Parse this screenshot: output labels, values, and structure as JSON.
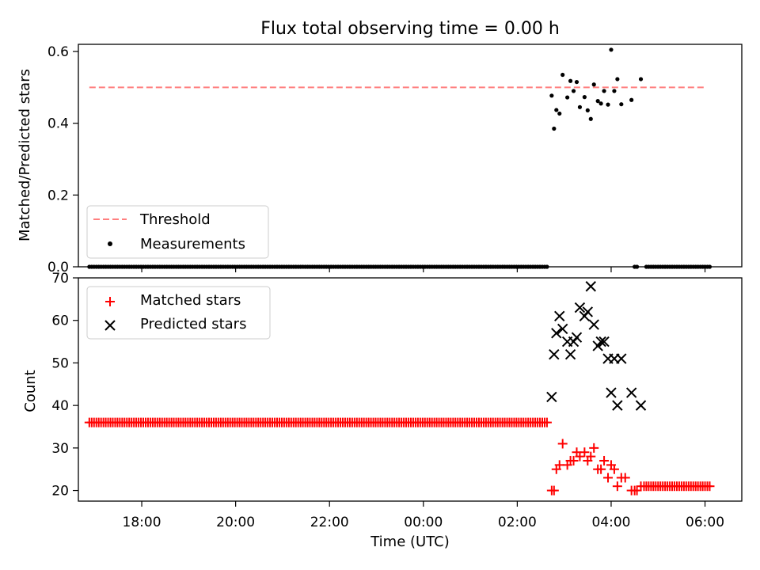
{
  "figure": {
    "title": "Flux total observing time = 0.00 h"
  },
  "chart_data": [
    {
      "type": "scatter",
      "panel": "top",
      "ylabel": "Matched/Predicted stars",
      "xlabel": "",
      "x_is_time_utc": true,
      "xlim": [
        "16:39",
        "06:47"
      ],
      "ylim": [
        0,
        0.62
      ],
      "yticks": [
        0.0,
        0.2,
        0.4,
        0.6
      ],
      "ytick_labels": [
        "0.0",
        "0.2",
        "0.4",
        "0.6"
      ],
      "xticks": [
        "18:00",
        "20:00",
        "22:00",
        "00:00",
        "02:00",
        "04:00",
        "06:00"
      ],
      "legend": {
        "placement": "lower-left",
        "entries": [
          "Threshold",
          "Measurements"
        ]
      },
      "threshold": {
        "name": "Threshold",
        "value": 0.5,
        "x_range": [
          "16:53",
          "06:00"
        ],
        "color": "#ff7f7f",
        "style": "dashed"
      },
      "series": [
        {
          "name": "Measurements",
          "marker": "dot",
          "color": "#000000",
          "zero_time_range": {
            "start": "16:53",
            "end": "02:38",
            "step_minutes": 3,
            "value": 0
          },
          "points": [
            [
              "02:44",
              0.477
            ],
            [
              "02:47",
              0.385
            ],
            [
              "02:50",
              0.437
            ],
            [
              "02:54",
              0.427
            ],
            [
              "02:58",
              0.535
            ],
            [
              "03:04",
              0.472
            ],
            [
              "03:08",
              0.518
            ],
            [
              "03:12",
              0.49
            ],
            [
              "03:16",
              0.515
            ],
            [
              "03:20",
              0.445
            ],
            [
              "03:26",
              0.473
            ],
            [
              "03:30",
              0.436
            ],
            [
              "03:34",
              0.412
            ],
            [
              "03:38",
              0.508
            ],
            [
              "03:43",
              0.462
            ],
            [
              "03:47",
              0.455
            ],
            [
              "03:51",
              0.49
            ],
            [
              "03:56",
              0.452
            ],
            [
              "04:00",
              0.605
            ],
            [
              "04:04",
              0.49
            ],
            [
              "04:08",
              0.523
            ],
            [
              "04:13",
              0.453
            ],
            [
              "04:26",
              0.465
            ],
            [
              "04:38",
              0.523
            ],
            [
              "04:30",
              0
            ],
            [
              "04:33",
              0
            ],
            [
              "04:45",
              0
            ],
            [
              "04:48",
              0
            ],
            [
              "04:51",
              0
            ],
            [
              "04:54",
              0
            ],
            [
              "04:57",
              0
            ],
            [
              "05:00",
              0
            ],
            [
              "05:03",
              0
            ],
            [
              "05:06",
              0
            ],
            [
              "05:09",
              0
            ],
            [
              "05:12",
              0
            ],
            [
              "05:15",
              0
            ],
            [
              "05:18",
              0
            ],
            [
              "05:21",
              0
            ],
            [
              "05:24",
              0
            ],
            [
              "05:27",
              0
            ],
            [
              "05:30",
              0
            ],
            [
              "05:33",
              0
            ],
            [
              "05:36",
              0
            ],
            [
              "05:39",
              0
            ],
            [
              "05:42",
              0
            ],
            [
              "05:45",
              0
            ],
            [
              "05:48",
              0
            ],
            [
              "05:51",
              0
            ],
            [
              "05:54",
              0
            ],
            [
              "05:57",
              0
            ],
            [
              "06:00",
              0
            ],
            [
              "06:03",
              0
            ],
            [
              "06:06",
              0
            ]
          ]
        }
      ]
    },
    {
      "type": "scatter",
      "panel": "bottom",
      "xlabel": "Time (UTC)",
      "ylabel": "Count",
      "x_is_time_utc": true,
      "xlim": [
        "16:39",
        "06:47"
      ],
      "ylim": [
        17.5,
        70
      ],
      "yticks": [
        20,
        30,
        40,
        50,
        60,
        70
      ],
      "ytick_labels": [
        "20",
        "30",
        "40",
        "50",
        "60",
        "70"
      ],
      "xticks": [
        "18:00",
        "20:00",
        "22:00",
        "00:00",
        "02:00",
        "04:00",
        "06:00"
      ],
      "xtick_labels": [
        "18:00",
        "20:00",
        "22:00",
        "00:00",
        "02:00",
        "04:00",
        "06:00"
      ],
      "legend": {
        "placement": "upper-left",
        "entries": [
          "Matched stars",
          "Predicted stars"
        ]
      },
      "series": [
        {
          "name": "Matched stars",
          "marker": "plus",
          "color": "#ff0000",
          "constant_time_range": {
            "start": "16:53",
            "end": "02:38",
            "step_minutes": 3,
            "value": 36
          },
          "points": [
            [
              "02:44",
              20
            ],
            [
              "02:47",
              20
            ],
            [
              "02:50",
              25
            ],
            [
              "02:54",
              26
            ],
            [
              "02:58",
              31
            ],
            [
              "03:04",
              26
            ],
            [
              "03:08",
              27
            ],
            [
              "03:12",
              27
            ],
            [
              "03:16",
              29
            ],
            [
              "03:20",
              28
            ],
            [
              "03:26",
              29
            ],
            [
              "03:30",
              27
            ],
            [
              "03:34",
              28
            ],
            [
              "03:38",
              30
            ],
            [
              "03:43",
              25
            ],
            [
              "03:47",
              25
            ],
            [
              "03:51",
              27
            ],
            [
              "03:56",
              23
            ],
            [
              "04:00",
              26
            ],
            [
              "04:04",
              25
            ],
            [
              "04:08",
              21
            ],
            [
              "04:13",
              23
            ],
            [
              "04:18",
              23
            ],
            [
              "04:26",
              20
            ],
            [
              "04:30",
              20
            ],
            [
              "04:33",
              20
            ],
            [
              "04:38",
              21
            ],
            [
              "04:42",
              21
            ],
            [
              "04:45",
              21
            ],
            [
              "04:48",
              21
            ],
            [
              "04:51",
              21
            ],
            [
              "04:54",
              21
            ],
            [
              "04:57",
              21
            ],
            [
              "05:00",
              21
            ],
            [
              "05:03",
              21
            ],
            [
              "05:06",
              21
            ],
            [
              "05:09",
              21
            ],
            [
              "05:12",
              21
            ],
            [
              "05:15",
              21
            ],
            [
              "05:18",
              21
            ],
            [
              "05:21",
              21
            ],
            [
              "05:24",
              21
            ],
            [
              "05:27",
              21
            ],
            [
              "05:30",
              21
            ],
            [
              "05:33",
              21
            ],
            [
              "05:36",
              21
            ],
            [
              "05:39",
              21
            ],
            [
              "05:42",
              21
            ],
            [
              "05:45",
              21
            ],
            [
              "05:48",
              21
            ],
            [
              "05:51",
              21
            ],
            [
              "05:54",
              21
            ],
            [
              "05:57",
              21
            ],
            [
              "06:00",
              21
            ],
            [
              "06:03",
              21
            ],
            [
              "06:06",
              21
            ]
          ]
        },
        {
          "name": "Predicted stars",
          "marker": "x",
          "color": "#000000",
          "points": [
            [
              "02:44",
              42
            ],
            [
              "02:47",
              52
            ],
            [
              "02:50",
              57
            ],
            [
              "02:54",
              61
            ],
            [
              "02:58",
              58
            ],
            [
              "03:04",
              55
            ],
            [
              "03:08",
              52
            ],
            [
              "03:12",
              55
            ],
            [
              "03:16",
              56
            ],
            [
              "03:20",
              63
            ],
            [
              "03:26",
              61
            ],
            [
              "03:30",
              62
            ],
            [
              "03:34",
              68
            ],
            [
              "03:38",
              59
            ],
            [
              "03:43",
              54
            ],
            [
              "03:47",
              55
            ],
            [
              "03:51",
              55
            ],
            [
              "03:56",
              51
            ],
            [
              "04:00",
              43
            ],
            [
              "04:04",
              51
            ],
            [
              "04:08",
              40
            ],
            [
              "04:13",
              51
            ],
            [
              "04:26",
              43
            ],
            [
              "04:38",
              40
            ]
          ]
        }
      ]
    }
  ]
}
